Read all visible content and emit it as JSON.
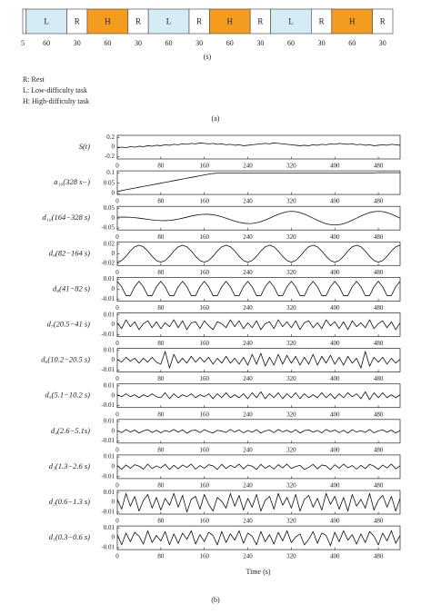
{
  "timeline": {
    "blocks": [
      {
        "label": null,
        "duration": 5,
        "color": "#ffffff"
      },
      {
        "label": "L",
        "duration": 60,
        "color": "#d5ebf6"
      },
      {
        "label": "R",
        "duration": 30,
        "color": "#ffffff"
      },
      {
        "label": "H",
        "duration": 60,
        "color": "#f39c1f"
      },
      {
        "label": "R",
        "duration": 30,
        "color": "#ffffff"
      },
      {
        "label": "L",
        "duration": 60,
        "color": "#d5ebf6"
      },
      {
        "label": "R",
        "duration": 30,
        "color": "#ffffff"
      },
      {
        "label": "H",
        "duration": 60,
        "color": "#f39c1f"
      },
      {
        "label": "R",
        "duration": 30,
        "color": "#ffffff"
      },
      {
        "label": "L",
        "duration": 60,
        "color": "#d5ebf6"
      },
      {
        "label": "R",
        "duration": 30,
        "color": "#ffffff"
      },
      {
        "label": "H",
        "duration": 60,
        "color": "#f39c1f"
      },
      {
        "label": "R",
        "duration": 30,
        "color": "#ffffff"
      }
    ],
    "unit": "(s)",
    "legend": [
      "R: Rest",
      "L: Low-difficulty task",
      "H: High-difficulty task"
    ],
    "caption": "(a)"
  },
  "chart_data": {
    "type": "stacked-line",
    "xlabel": "Time (s)",
    "caption": "(b)",
    "color": "#111111",
    "xlim": [
      0,
      520
    ],
    "xticks": [
      0,
      80,
      160,
      240,
      320,
      400,
      480
    ],
    "x": [
      0,
      8,
      16,
      24,
      32,
      40,
      48,
      56,
      64,
      72,
      80,
      88,
      96,
      104,
      112,
      120,
      128,
      136,
      144,
      152,
      160,
      168,
      176,
      184,
      192,
      200,
      208,
      216,
      224,
      232,
      240,
      248,
      256,
      264,
      272,
      280,
      288,
      296,
      304,
      312,
      320,
      328,
      336,
      344,
      352,
      360,
      368,
      376,
      384,
      392,
      400,
      408,
      416,
      424,
      432,
      440,
      448,
      456,
      464,
      472,
      480,
      488,
      496,
      504,
      512,
      520
    ],
    "series": [
      {
        "name": "S(t)",
        "ylim": [
          -0.25,
          0.25
        ],
        "yticks": [
          -0.2,
          0,
          0.2
        ],
        "values": [
          -0.02,
          0,
          -0.01,
          0.01,
          0,
          0.02,
          0.01,
          0.03,
          0.02,
          0.04,
          0.03,
          0.05,
          0.04,
          0.06,
          0.05,
          0.07,
          0.06,
          0.08,
          0.07,
          0.09,
          0.08,
          0.07,
          0.08,
          0.06,
          0.07,
          0.05,
          0.06,
          0.04,
          0.05,
          0.03,
          0.04,
          0.05,
          0.06,
          0.07,
          0.08,
          0.07,
          0.09,
          0.08,
          0.07,
          0.06,
          0.05,
          0.04,
          0.03,
          0.04,
          0.03,
          0.05,
          0.04,
          0.06,
          0.05,
          0.07,
          0.06,
          0.08,
          0.07,
          0.06,
          0.07,
          0.05,
          0.06,
          0.04,
          0.05,
          0.03,
          0.04,
          0.05,
          0.04,
          0.06,
          0.05,
          0.04
        ]
      },
      {
        "name": "a₁₀(328 s−)",
        "ylim": [
          -0.005,
          0.11
        ],
        "yticks": [
          0,
          0.05,
          0.1
        ],
        "values": [
          0.01,
          0.014,
          0.018,
          0.022,
          0.026,
          0.03,
          0.034,
          0.038,
          0.042,
          0.046,
          0.05,
          0.054,
          0.058,
          0.062,
          0.066,
          0.07,
          0.074,
          0.078,
          0.082,
          0.086,
          0.09,
          0.094,
          0.097,
          0.099,
          0.1,
          0.1,
          0.1,
          0.1,
          0.1,
          0.1,
          0.1,
          0.1,
          0.1,
          0.1,
          0.1,
          0.1,
          0.1,
          0.1,
          0.1,
          0.1,
          0.1,
          0.1,
          0.1,
          0.1,
          0.1,
          0.1,
          0.1,
          0.1,
          0.1,
          0.1,
          0.1,
          0.1,
          0.1,
          0.1,
          0.1,
          0.1,
          0.1,
          0.1,
          0.1,
          0.1,
          0.101,
          0.101,
          0.101,
          0.101,
          0.101,
          0.101
        ]
      },
      {
        "name": "d₁₀(164−328 s)",
        "ylim": [
          -0.06,
          0.06
        ],
        "yticks": [
          -0.05,
          0,
          0.05
        ],
        "values": [
          0.005,
          0.0055,
          0.0053,
          0.0043,
          0.0025,
          0,
          -0.0029,
          -0.006,
          -0.0089,
          -0.0112,
          -0.0125,
          -0.0126,
          -0.0113,
          -0.0087,
          -0.0048,
          0,
          0.0053,
          0.0104,
          0.015,
          0.0183,
          0.02,
          0.0197,
          0.0174,
          0.0131,
          0.0071,
          0,
          -0.0076,
          -0.0148,
          -0.021,
          -0.0254,
          -0.0275,
          -0.0269,
          -0.0235,
          -0.0175,
          -0.0094,
          0,
          0.0099,
          0.0193,
          0.0271,
          0.0326,
          0.035,
          0.0333,
          0.0283,
          0.0206,
          0.0108,
          0,
          -0.0108,
          -0.0206,
          -0.0283,
          -0.0333,
          -0.035,
          -0.0333,
          -0.0283,
          -0.0206,
          -0.0108,
          0,
          0.0108,
          0.0206,
          0.0283,
          0.0333,
          0.035,
          0.0333,
          0.0283,
          0.0206,
          0.0108,
          0
        ]
      },
      {
        "name": "d₉(82−164 s)",
        "ylim": [
          -0.025,
          0.025
        ],
        "yticks": [
          -0.02,
          0,
          0.02
        ],
        "values": [
          -0.018,
          -0.0146,
          -0.0056,
          0.0056,
          0.0146,
          0.018,
          0.0146,
          0.0056,
          -0.0056,
          -0.0146,
          -0.018,
          -0.0146,
          -0.0056,
          0.0056,
          0.0146,
          0.018,
          0.0146,
          0.0056,
          -0.0056,
          -0.0146,
          -0.018,
          -0.0146,
          -0.0056,
          0.0056,
          0.0146,
          0.018,
          0.0146,
          0.0056,
          -0.0056,
          -0.0146,
          -0.018,
          -0.0146,
          -0.0056,
          0.0056,
          0.0146,
          0.018,
          0.0146,
          0.0056,
          -0.0056,
          -0.0146,
          -0.018,
          -0.0146,
          -0.0056,
          0.0056,
          0.0146,
          0.018,
          0.0146,
          0.0056,
          -0.0056,
          -0.0146,
          -0.018,
          -0.0146,
          -0.0056,
          0.0056,
          0.0146,
          0.018,
          0.0146,
          0.0056,
          -0.0056,
          -0.0146,
          -0.018,
          -0.0146,
          -0.0056,
          0.0056,
          0.0146,
          0.018
        ]
      },
      {
        "name": "d₈(41−82 s)",
        "ylim": [
          -0.012,
          0.012
        ],
        "yticks": [
          -0.01,
          0,
          0.01
        ],
        "values": [
          0.008,
          0.0025,
          -0.0065,
          -0.0065,
          0.0025,
          0.008,
          0.0025,
          -0.0065,
          -0.0065,
          0.0025,
          0.008,
          0.0025,
          -0.0065,
          -0.0065,
          0.0025,
          0.008,
          0.0025,
          -0.0065,
          -0.0065,
          0.0025,
          0.008,
          0.0025,
          -0.0065,
          -0.0065,
          0.0025,
          0.008,
          0.0025,
          -0.0065,
          -0.0065,
          0.0025,
          0.008,
          0.0025,
          -0.0065,
          -0.0065,
          0.0025,
          0.008,
          0.0025,
          -0.0065,
          -0.0065,
          0.0025,
          0.008,
          0.0025,
          -0.0065,
          -0.0065,
          0.0025,
          0.008,
          0.0025,
          -0.0065,
          -0.0065,
          0.0025,
          0.008,
          0.0025,
          -0.0065,
          -0.0065,
          0.0025,
          0.008,
          0.0025,
          -0.0065,
          -0.0065,
          0.0025,
          0.008,
          0.0025,
          -0.0065,
          -0.0065,
          0.0025,
          0.008
        ]
      },
      {
        "name": "d₇(20.5−41 s)",
        "ylim": [
          -0.012,
          0.012
        ],
        "yticks": [
          -0.01,
          0,
          0.01
        ],
        "values": [
          0.002,
          -0.004,
          0.005,
          -0.002,
          0.003,
          -0.005,
          0.001,
          0.004,
          -0.003,
          0.003,
          -0.004,
          0.002,
          -0.002,
          0.005,
          -0.003,
          0.004,
          -0.005,
          0.002,
          0.003,
          -0.004,
          0.004,
          -0.001,
          -0.005,
          0.003,
          0.001,
          -0.003,
          0.005,
          -0.002,
          0.004,
          -0.004,
          0.002,
          -0.003,
          0.004,
          -0.005,
          0.001,
          0.003,
          -0.004,
          0.005,
          -0.002,
          0.003,
          -0.003,
          0.004,
          -0.005,
          0.002,
          0.004,
          -0.003,
          0.002,
          -0.004,
          0.005,
          -0.001,
          0.003,
          -0.004,
          0.003,
          -0.005,
          0.004,
          -0.002,
          0.002,
          -0.003,
          0.005,
          -0.004,
          0.001,
          0.004,
          -0.003,
          0.003,
          -0.005,
          0.002
        ]
      },
      {
        "name": "d₆(10.2−20.5 s)",
        "ylim": [
          -0.012,
          0.012
        ],
        "yticks": [
          -0.01,
          0,
          0.01
        ],
        "values": [
          0.001,
          -0.002,
          0.003,
          -0.001,
          0.002,
          -0.003,
          0.002,
          -0.002,
          0.003,
          -0.002,
          -0.004,
          0.009,
          -0.008,
          0.006,
          -0.003,
          0.002,
          -0.003,
          0.004,
          -0.002,
          0.003,
          -0.002,
          0.003,
          -0.004,
          0.002,
          -0.003,
          0.004,
          -0.003,
          0.002,
          -0.004,
          0.003,
          -0.005,
          0.006,
          -0.004,
          0.007,
          -0.006,
          0.003,
          -0.005,
          0.006,
          -0.004,
          0.005,
          -0.003,
          0.004,
          -0.005,
          0.003,
          -0.004,
          0.006,
          -0.005,
          0.004,
          -0.003,
          0.005,
          -0.004,
          0.003,
          -0.005,
          0.004,
          -0.003,
          0.002,
          -0.008,
          0.009,
          -0.006,
          0.003,
          -0.002,
          0.003,
          -0.004,
          0.002,
          -0.003,
          0.001
        ]
      },
      {
        "name": "d₅(5.1−10.2 s)",
        "ylim": [
          -0.012,
          0.012
        ],
        "yticks": [
          -0.01,
          0,
          0.01
        ],
        "values": [
          0.001,
          -0.001,
          0.002,
          -0.001,
          0.001,
          -0.002,
          0.001,
          -0.001,
          0.002,
          -0.001,
          -0.002,
          0.003,
          -0.003,
          0.002,
          -0.002,
          0.001,
          -0.001,
          0.002,
          -0.002,
          0.001,
          -0.001,
          0.002,
          -0.003,
          0.002,
          -0.002,
          0.003,
          -0.002,
          0.001,
          -0.002,
          0.002,
          -0.003,
          0.003,
          -0.002,
          0.004,
          -0.003,
          0.002,
          -0.002,
          0.003,
          -0.003,
          0.002,
          -0.002,
          0.003,
          -0.003,
          0.002,
          -0.002,
          0.001,
          -0.002,
          0.003,
          -0.002,
          0.002,
          -0.003,
          0.002,
          -0.002,
          0.003,
          -0.001,
          0.002,
          -0.003,
          0.004,
          -0.004,
          0.003,
          -0.002,
          0.003,
          -0.002,
          0.001,
          -0.002,
          0.001
        ]
      },
      {
        "name": "d₄(2.6−5.1s)",
        "ylim": [
          -0.012,
          0.012
        ],
        "yticks": [
          -0.01,
          0,
          0.01
        ],
        "values": [
          0.0006,
          -0.0014,
          0.0018,
          -0.0008,
          0.0012,
          -0.0018,
          0.0004,
          0.0016,
          -0.0012,
          0.001,
          -0.0016,
          0.0008,
          -0.0006,
          0.0018,
          -0.001,
          0.0014,
          -0.002,
          0.0006,
          0.0012,
          -0.0014,
          0.0016,
          -0.0004,
          -0.0018,
          0.001,
          0.0002,
          -0.0012,
          0.0018,
          -0.0008,
          0.0014,
          -0.0016,
          0.0008,
          -0.001,
          0.0016,
          -0.0018,
          0.0004,
          0.0012,
          -0.0014,
          0.0018,
          -0.0006,
          0.001,
          -0.0012,
          0.0016,
          -0.0018,
          0.0006,
          0.0014,
          -0.001,
          0.0008,
          -0.0016,
          0.0018,
          -0.0004,
          0.0012,
          -0.0014,
          0.001,
          -0.0018,
          0.0016,
          -0.0008,
          0.0006,
          -0.0012,
          0.0018,
          -0.0016,
          0.0004,
          0.0014,
          -0.001,
          0.0012,
          -0.0018,
          0.0008
        ]
      },
      {
        "name": "d₃(1.3−2.6 s)",
        "ylim": [
          -0.012,
          0.012
        ],
        "yticks": [
          -0.01,
          0,
          0.01
        ],
        "values": [
          0.0012,
          -0.0027,
          0.0018,
          -0.0015,
          0.0021,
          0.0006,
          -0.0024,
          0.0027,
          -0.0018,
          0.0009,
          -0.0012,
          0.0024,
          -0.0027,
          0.0015,
          -0.0021,
          0.0018,
          -0.0006,
          0.0027,
          -0.0024,
          0.0012,
          -0.0015,
          0.0021,
          0.0009,
          -0.0027,
          0.0024,
          -0.0018,
          0.0015,
          -0.0009,
          0.0027,
          -0.0021,
          0.0018,
          0.0006,
          -0.0027,
          0.0024,
          -0.0015,
          0.0012,
          -0.0024,
          0.0021,
          -0.0012,
          0.0027,
          -0.0018,
          0.0003,
          0.0015,
          -0.0027,
          -0.0006,
          0.0024,
          -0.0021,
          0.0018,
          0.0009,
          -0.003,
          0.0021,
          -0.0015,
          0.0027,
          -0.0009,
          0.0012,
          -0.0024,
          0.0015,
          -0.0018,
          0.0024,
          0.0006,
          -0.0027,
          0.0018,
          -0.0012,
          0.0027,
          -0.0021,
          0.0009
        ]
      },
      {
        "name": "d₂(0.6−1.3 s)",
        "ylim": [
          -0.012,
          0.012
        ],
        "yticks": [
          -0.01,
          0,
          0.01
        ],
        "values": [
          0.003,
          -0.007,
          0.009,
          -0.004,
          0.006,
          -0.009,
          0.002,
          0.008,
          -0.006,
          0.005,
          -0.008,
          0.004,
          -0.003,
          0.009,
          -0.005,
          0.007,
          -0.01,
          0.003,
          0.006,
          -0.007,
          0.008,
          -0.002,
          -0.009,
          0.005,
          0.001,
          -0.006,
          0.009,
          -0.004,
          0.007,
          -0.008,
          0.004,
          -0.005,
          0.008,
          -0.009,
          0.002,
          0.006,
          -0.007,
          0.009,
          -0.003,
          0.005,
          -0.006,
          0.008,
          -0.009,
          0.003,
          0.007,
          -0.005,
          0.004,
          -0.008,
          0.009,
          -0.002,
          0.006,
          -0.007,
          0.005,
          -0.009,
          0.008,
          -0.004,
          0.003,
          -0.006,
          0.009,
          -0.008,
          0.002,
          0.007,
          -0.005,
          0.006,
          -0.009,
          0.004
        ]
      },
      {
        "name": "d₁(0.3−0.6 s)",
        "ylim": [
          -0.012,
          0.012
        ],
        "yticks": [
          -0.01,
          0,
          0.01
        ],
        "values": [
          0.0032,
          -0.0072,
          0.0048,
          -0.004,
          0.0056,
          0.0016,
          -0.0064,
          0.0072,
          -0.0048,
          0.0024,
          -0.0032,
          0.0064,
          -0.0072,
          0.004,
          -0.0056,
          0.0048,
          -0.0016,
          0.0072,
          -0.0064,
          0.0032,
          -0.004,
          0.0056,
          0.0024,
          -0.0072,
          0.0064,
          -0.0048,
          0.004,
          -0.0024,
          0.0072,
          -0.0056,
          0.0048,
          0.0016,
          -0.0072,
          0.0064,
          -0.004,
          0.0032,
          -0.0064,
          0.0056,
          -0.0032,
          0.0072,
          -0.0048,
          0.0008,
          0.004,
          -0.0072,
          -0.0016,
          0.0064,
          -0.0056,
          0.0048,
          0.0024,
          -0.008,
          0.0056,
          -0.004,
          0.0072,
          -0.0024,
          0.0032,
          -0.0064,
          0.004,
          -0.0048,
          0.0064,
          0.0016,
          -0.0072,
          0.0048,
          -0.0032,
          0.0072,
          -0.0056,
          0.0024
        ]
      }
    ]
  }
}
